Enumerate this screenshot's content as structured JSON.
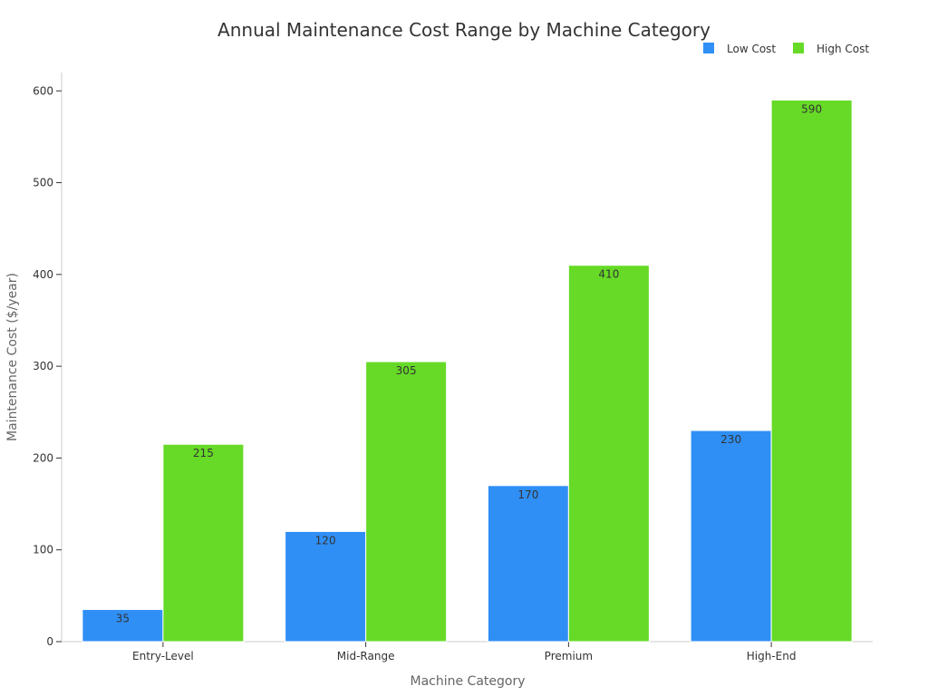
{
  "chart_data": {
    "type": "bar",
    "title": "Annual Maintenance Cost Range by Machine Category",
    "xlabel": "Machine Category",
    "ylabel": "Maintenance Cost ($/year)",
    "categories": [
      "Entry-Level",
      "Mid-Range",
      "Premium",
      "High-End"
    ],
    "series": [
      {
        "name": "Low Cost",
        "values": [
          35,
          120,
          170,
          230
        ],
        "color": "#2f8ff5"
      },
      {
        "name": "High Cost",
        "values": [
          215,
          305,
          410,
          590
        ],
        "color": "#66da26"
      }
    ],
    "ylim": [
      0,
      620
    ],
    "yticks": [
      0,
      100,
      200,
      300,
      400,
      500,
      600
    ],
    "grid": false,
    "legend": "top-right"
  }
}
